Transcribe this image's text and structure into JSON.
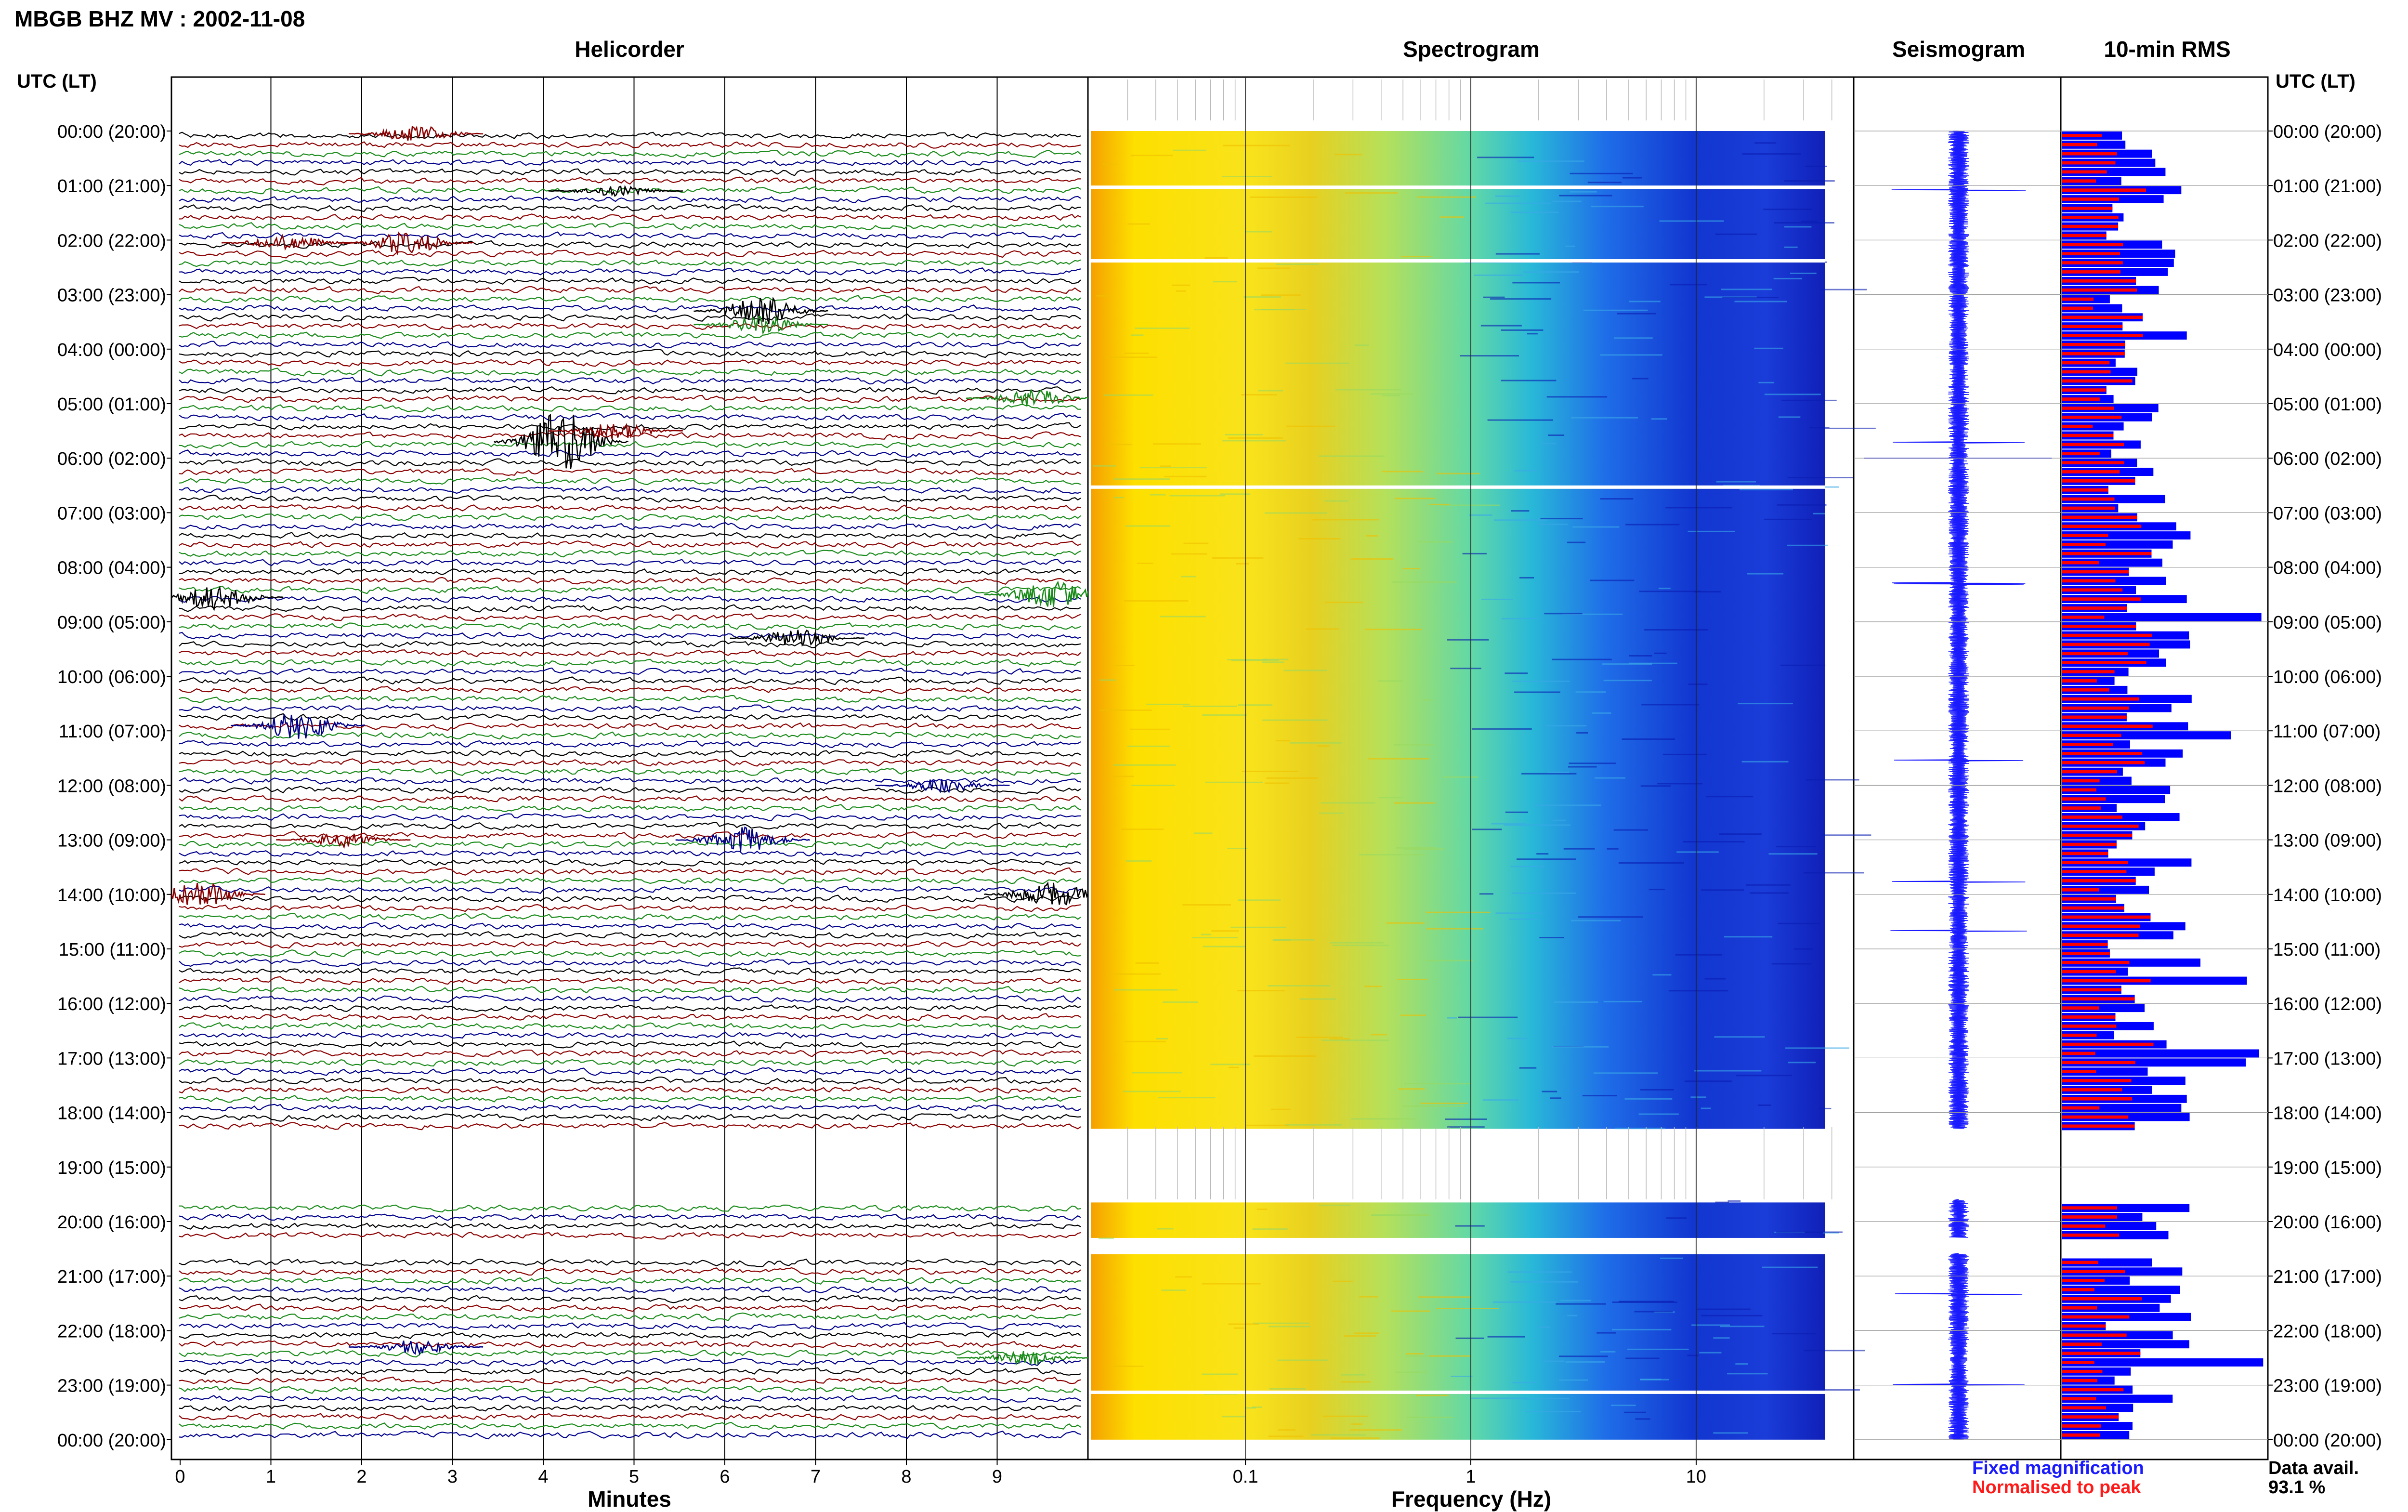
{
  "chart_data": {
    "type": "heatmap",
    "title": "MBGB BHZ MV : 2002-11-08",
    "panels": {
      "helicorder": "Helicorder",
      "spectrogram": "Spectrogram",
      "seismogram": "Seismogram",
      "rms": "10-min RMS"
    },
    "time_axis_label": "UTC (LT)",
    "hour_labels": [
      "00:00 (20:00)",
      "01:00 (21:00)",
      "02:00 (22:00)",
      "03:00 (23:00)",
      "04:00 (00:00)",
      "05:00 (01:00)",
      "06:00 (02:00)",
      "07:00 (03:00)",
      "08:00 (04:00)",
      "09:00 (05:00)",
      "10:00 (06:00)",
      "11:00 (07:00)",
      "12:00 (08:00)",
      "13:00 (09:00)",
      "14:00 (10:00)",
      "15:00 (11:00)",
      "16:00 (12:00)",
      "17:00 (13:00)",
      "18:00 (14:00)",
      "19:00 (15:00)",
      "20:00 (16:00)",
      "21:00 (17:00)",
      "22:00 (18:00)",
      "23:00 (19:00)",
      "00:00 (20:00)"
    ],
    "helicorder_xlabel": "Minutes",
    "helicorder_xticks": [
      "0",
      "1",
      "2",
      "3",
      "4",
      "5",
      "6",
      "7",
      "8",
      "9"
    ],
    "helicorder_xlim": [
      0,
      10
    ],
    "spectrogram_xlabel": "Frequency (Hz)",
    "spectrogram_xticks": [
      "0.1",
      "1",
      "10"
    ],
    "spectrogram_xlim": [
      0.02,
      50
    ],
    "spectrogram_xscale": "log",
    "data_gaps_hours": [
      [
        18.3,
        19.6
      ],
      [
        20.3,
        20.6
      ]
    ],
    "legend": {
      "fixed": "Fixed magnification",
      "normalised": "Normalised to peak",
      "fixed_color": "#1a1aff",
      "normalised_color": "#ff1a1a"
    },
    "availability_label": "Data avail.",
    "availability_value": "93.1 %",
    "trace_colors": [
      "#000000",
      "#8b0000",
      "#1a8b1a",
      "#00008b"
    ],
    "rms_fixed_color": "#0000ff",
    "rms_norm_color": "#ff0000"
  }
}
